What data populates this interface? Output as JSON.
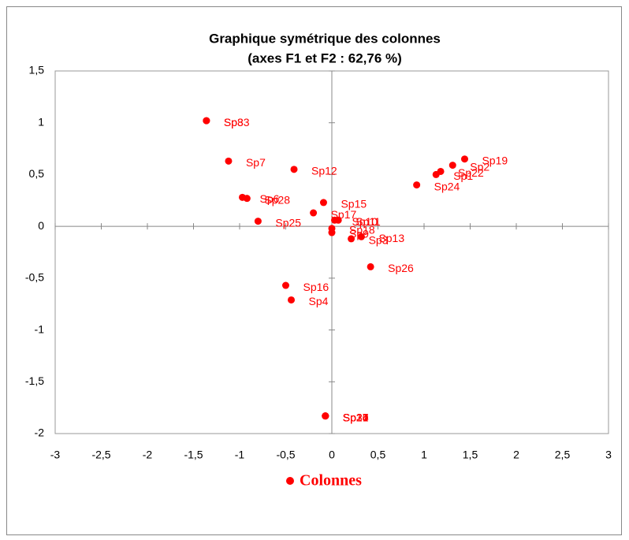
{
  "chart_data": {
    "type": "scatter",
    "title": "Graphique symétrique des colonnes",
    "subtitle": "(axes F1 et F2 : 62,76 %)",
    "xlim": [
      -3,
      3
    ],
    "ylim": [
      -2,
      1.5
    ],
    "xticks": [
      -3,
      {
        "value": -2.5,
        "label": "-2,5"
      },
      -2,
      {
        "value": -1.5,
        "label": "-1,5"
      },
      -1,
      {
        "value": -0.5,
        "label": "-0,5"
      },
      0,
      {
        "value": 0.5,
        "label": "0,5"
      },
      1,
      {
        "value": 1.5,
        "label": "1,5"
      },
      2,
      {
        "value": 2.5,
        "label": "2,5"
      },
      3
    ],
    "yticks": [
      {
        "value": 1.5,
        "label": "1,5"
      },
      1,
      {
        "value": 0.5,
        "label": "0,5"
      },
      0,
      {
        "value": -0.5,
        "label": "-0,5"
      },
      -1,
      {
        "value": -1.5,
        "label": "-1,5"
      },
      -2
    ],
    "grid": false,
    "legend": "bottom",
    "series": [
      {
        "name": "Colonnes",
        "color": "#ff0000",
        "point_labels": [
          "Sp8",
          "Sp33",
          "Sp7",
          "Sp12",
          "Sp6",
          "Sp28",
          "Sp25",
          "Sp15",
          "Sp17",
          "Sp10",
          "Sp11",
          "Sp18",
          "Sp3",
          "Sp9",
          "Sp13",
          "Sp26",
          "Sp16",
          "Sp4",
          "Sp24",
          "Sp1",
          "Sp22",
          "Sp2",
          "Sp19",
          "Sp14",
          "Sp20",
          "Sp21",
          "Sp27",
          "Sp34"
        ],
        "x": [
          -1.36,
          -1.36,
          -1.12,
          -0.41,
          -0.97,
          -0.92,
          -0.8,
          -0.09,
          -0.2,
          0.03,
          0.07,
          0.0,
          0.21,
          0.0,
          0.32,
          0.42,
          -0.5,
          -0.44,
          0.92,
          1.13,
          1.18,
          1.31,
          1.44,
          -0.07,
          -0.07,
          -0.07,
          -0.07,
          -0.07
        ],
        "values": [
          1.02,
          1.02,
          0.63,
          0.55,
          0.28,
          0.27,
          0.05,
          0.23,
          0.13,
          0.06,
          0.06,
          -0.02,
          -0.12,
          -0.06,
          -0.1,
          -0.39,
          -0.57,
          -0.71,
          0.4,
          0.5,
          0.53,
          0.59,
          0.65,
          -1.83,
          -1.83,
          -1.83,
          -1.83,
          -1.83
        ]
      }
    ]
  }
}
